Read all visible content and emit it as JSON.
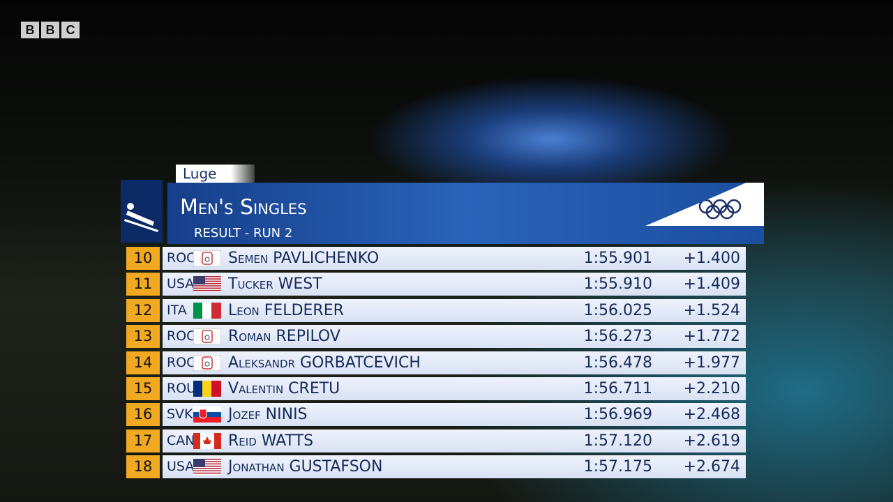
{
  "logo": "BBC",
  "header": {
    "sport": "Luge",
    "title": "Men's Singles",
    "subtitle": "RESULT - RUN 2"
  },
  "table": {
    "rows": [
      [
        "10",
        "ROC",
        "Semen PAVLICHENKO",
        "1:55.901",
        "+1.400"
      ],
      [
        "11",
        "USA",
        "Tucker WEST",
        "1:55.910",
        "+1.409"
      ],
      [
        "12",
        "ITA",
        "Leon FELDERER",
        "1:56.025",
        "+1.524"
      ],
      [
        "13",
        "ROC",
        "Roman REPILOV",
        "1:56.273",
        "+1.772"
      ],
      [
        "14",
        "ROC",
        "Aleksandr GORBATCEVICH",
        "1:56.478",
        "+1.977"
      ],
      [
        "15",
        "ROU",
        "Valentin CRETU",
        "1:56.711",
        "+2.210"
      ],
      [
        "16",
        "SVK",
        "Jozef NINIS",
        "1:56.969",
        "+2.468"
      ],
      [
        "17",
        "CAN",
        "Reid WATTS",
        "1:57.120",
        "+2.619"
      ],
      [
        "18",
        "USA",
        "Jonathan GUSTAFSON",
        "1:57.175",
        "+2.674"
      ]
    ]
  }
}
